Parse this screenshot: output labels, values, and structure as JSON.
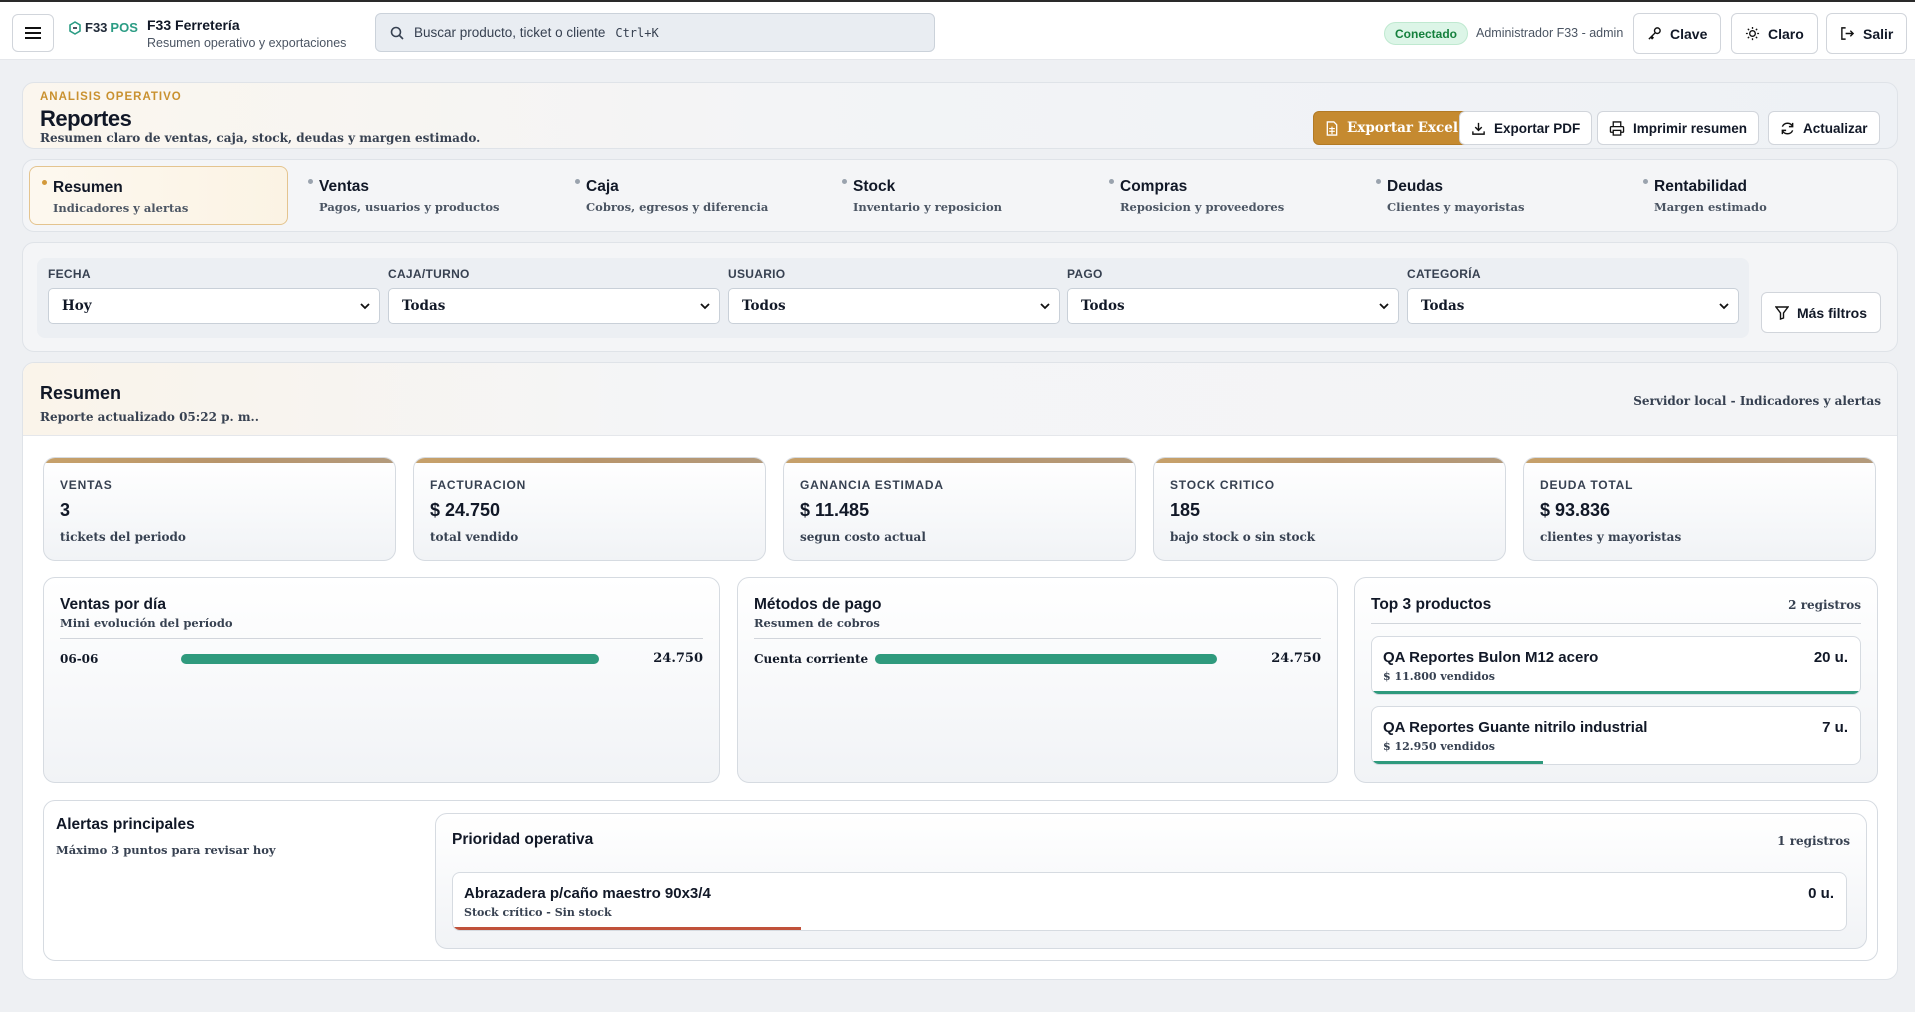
{
  "topbar": {
    "logo_f33": "F33",
    "logo_pos": "POS",
    "app_title": "F33 Ferretería",
    "app_subtitle": "Resumen operativo y exportaciones",
    "search_placeholder": "Buscar producto, ticket o cliente",
    "search_shortcut": "Ctrl+K",
    "status": "Conectado",
    "user": "Administrador F33 - admin",
    "buttons": {
      "key": "Clave",
      "theme": "Claro",
      "logout": "Salir"
    }
  },
  "header": {
    "kicker": "ANALISIS OPERATIVO",
    "title": "Reportes",
    "subtitle": "Resumen claro de ventas, caja, stock, deudas y margen estimado.",
    "actions": {
      "excel": "Exportar Excel",
      "pdf": "Exportar PDF",
      "print": "Imprimir resumen",
      "refresh": "Actualizar"
    }
  },
  "tabs": [
    {
      "label": "Resumen",
      "sub": "Indicadores y alertas",
      "active": true
    },
    {
      "label": "Ventas",
      "sub": "Pagos, usuarios y productos"
    },
    {
      "label": "Caja",
      "sub": "Cobros, egresos y diferencia"
    },
    {
      "label": "Stock",
      "sub": "Inventario y reposicion"
    },
    {
      "label": "Compras",
      "sub": "Reposicion y proveedores"
    },
    {
      "label": "Deudas",
      "sub": "Clientes y mayoristas"
    },
    {
      "label": "Rentabilidad",
      "sub": "Margen estimado"
    }
  ],
  "filters": {
    "items": [
      {
        "label": "FECHA",
        "value": "Hoy"
      },
      {
        "label": "CAJA/TURNO",
        "value": "Todas"
      },
      {
        "label": "USUARIO",
        "value": "Todos"
      },
      {
        "label": "PAGO",
        "value": "Todos"
      },
      {
        "label": "CATEGORÍA",
        "value": "Todas"
      }
    ],
    "more": "Más filtros"
  },
  "summary": {
    "title": "Resumen",
    "updated": "Reporte actualizado 05:22 p. m..",
    "source": "Servidor local - Indicadores y alertas",
    "kpis": [
      {
        "label": "VENTAS",
        "value": "3",
        "sub": "tickets del periodo"
      },
      {
        "label": "FACTURACION",
        "value": "$ 24.750",
        "sub": "total vendido"
      },
      {
        "label": "GANANCIA ESTIMADA",
        "value": "$ 11.485",
        "sub": "segun costo actual"
      },
      {
        "label": "STOCK CRITICO",
        "value": "185",
        "sub": "bajo stock o sin stock"
      },
      {
        "label": "DEUDA TOTAL",
        "value": "$ 93.836",
        "sub": "clientes y mayoristas"
      }
    ],
    "sales_by_day": {
      "title": "Ventas por día",
      "subtitle": "Mini evolución del período",
      "rows": [
        {
          "label": "06-06",
          "value": "24.750",
          "fraction": 1.0
        }
      ]
    },
    "payment_methods": {
      "title": "Métodos de pago",
      "subtitle": "Resumen de cobros",
      "rows": [
        {
          "label": "Cuenta corriente",
          "value": "24.750",
          "fraction": 1.0
        }
      ]
    },
    "top_products": {
      "title": "Top 3 productos",
      "count": "2 registros",
      "items": [
        {
          "name": "QA Reportes Bulon M12 acero",
          "sub": "$ 11.800 vendidos",
          "qty": "20 u.",
          "fraction": 1.0
        },
        {
          "name": "QA Reportes Guante nitrilo industrial",
          "sub": "$ 12.950 vendidos",
          "qty": "7 u.",
          "fraction": 0.35
        }
      ]
    },
    "alerts": {
      "title": "Alertas principales",
      "subtitle": "Máximo 3 puntos para revisar hoy"
    },
    "priority": {
      "title": "Prioridad operativa",
      "count": "1 registros",
      "items": [
        {
          "name": "Abrazadera p/caño maestro 90x3/4",
          "sub": "Stock crítico - Sin stock",
          "qty": "0 u.",
          "fraction": 0.25
        }
      ]
    }
  },
  "colors": {
    "accent": "#c58a30",
    "bar": "#2f9a7d",
    "alert_bar": "#c0513a",
    "status_ok": "#15803d"
  }
}
